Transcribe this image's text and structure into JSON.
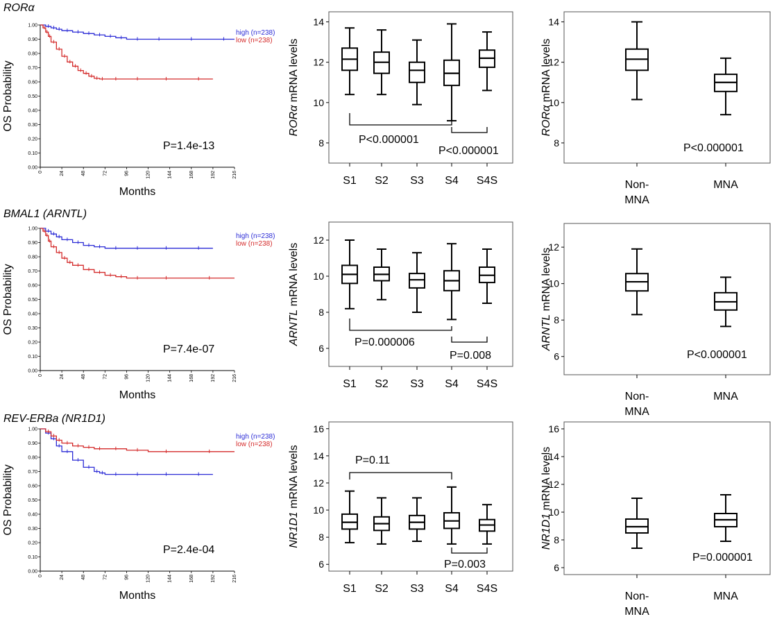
{
  "survival": {
    "y_ticks": [
      "1.00",
      "0.90",
      "0.80",
      "0.70",
      "0.60",
      "0.50",
      "0.40",
      "0.30",
      "0.20",
      "0.10",
      "0.00"
    ],
    "x_ticks": [
      "0",
      "24",
      "48",
      "72",
      "96",
      "120",
      "144",
      "168",
      "192",
      "216"
    ],
    "ylabel": "OS Probability",
    "xlabel": "Months",
    "panels": [
      {
        "title": "RORα",
        "high_label": "high (n=238)",
        "low_label": "low (n=238)",
        "p_value": "P=1.4e-13"
      },
      {
        "title": "BMAL1 (ARNTL)",
        "high_label": "high (n=238)",
        "low_label": "low (n=238)",
        "p_value": "P=7.4e-07"
      },
      {
        "title": "REV-ERBa (NR1D1)",
        "high_label": "high (n=238)",
        "low_label": "low (n=238)",
        "p_value": "P=2.4e-04"
      }
    ]
  },
  "stage_box": {
    "categories": [
      "S1",
      "S2",
      "S3",
      "S4",
      "S4S"
    ],
    "panels": [
      {
        "gene": "RORα",
        "ylabel_suffix": " mRNA levels",
        "y_ticks": [
          "14",
          "12",
          "10",
          "8"
        ],
        "p1": "P<0.000001",
        "p2": "P<0.000001"
      },
      {
        "gene": "ARNTL",
        "ylabel_suffix": " mRNA levels",
        "y_ticks": [
          "12",
          "10",
          "8",
          "6"
        ],
        "p1": "P=0.000006",
        "p2": "P=0.008"
      },
      {
        "gene": "NR1D1",
        "ylabel_suffix": " mRNA levels",
        "y_ticks": [
          "16",
          "14",
          "12",
          "10",
          "8",
          "6"
        ],
        "p1": "P=0.11",
        "p2": "P=0.003"
      }
    ]
  },
  "mna_box": {
    "cat1_line1": "Non-",
    "cat1_line2": "MNA",
    "cat2": "MNA",
    "panels": [
      {
        "gene": "RORα",
        "ylabel_suffix": " mRNA levels",
        "y_ticks": [
          "14",
          "12",
          "10",
          "8"
        ],
        "p": "P<0.000001"
      },
      {
        "gene": "ARNTL",
        "ylabel_suffix": " mRNA levels",
        "y_ticks": [
          "12",
          "10",
          "8",
          "6"
        ],
        "p": "P<0.000001"
      },
      {
        "gene": "NR1D1",
        "ylabel_suffix": " mRNA levels",
        "y_ticks": [
          "16",
          "14",
          "12",
          "10",
          "8",
          "6"
        ],
        "p": "P=0.000001"
      }
    ]
  },
  "chart_data": [
    {
      "type": "line",
      "title": "RORα",
      "xlabel": "Months",
      "ylabel": "OS Probability",
      "xlim": [
        0,
        216
      ],
      "ylim": [
        0,
        1
      ],
      "series": [
        {
          "name": "high (n=238)",
          "color": "#2b2bd6",
          "x": [
            0,
            6,
            12,
            18,
            24,
            36,
            48,
            60,
            72,
            84,
            96,
            120,
            144,
            192,
            216
          ],
          "y": [
            1.0,
            0.99,
            0.98,
            0.97,
            0.96,
            0.95,
            0.94,
            0.93,
            0.92,
            0.91,
            0.9,
            0.9,
            0.9,
            0.9,
            0.9
          ]
        },
        {
          "name": "low (n=238)",
          "color": "#d42a2a",
          "x": [
            0,
            3,
            6,
            9,
            12,
            18,
            24,
            30,
            36,
            42,
            48,
            54,
            60,
            66,
            72,
            96,
            120,
            160,
            192
          ],
          "y": [
            1.0,
            0.98,
            0.95,
            0.92,
            0.88,
            0.83,
            0.78,
            0.74,
            0.71,
            0.68,
            0.66,
            0.64,
            0.625,
            0.62,
            0.62,
            0.62,
            0.62,
            0.62,
            0.62
          ]
        }
      ],
      "p_value": "P=1.4e-13"
    },
    {
      "type": "line",
      "title": "BMAL1 (ARNTL)",
      "xlabel": "Months",
      "ylabel": "OS Probability",
      "xlim": [
        0,
        216
      ],
      "ylim": [
        0,
        1
      ],
      "series": [
        {
          "name": "high (n=238)",
          "color": "#2b2bd6",
          "x": [
            0,
            6,
            12,
            18,
            24,
            36,
            48,
            60,
            72,
            96,
            120,
            160,
            192
          ],
          "y": [
            1.0,
            0.98,
            0.96,
            0.94,
            0.92,
            0.9,
            0.88,
            0.87,
            0.86,
            0.86,
            0.86,
            0.86,
            0.86
          ]
        },
        {
          "name": "low (n=238)",
          "color": "#d42a2a",
          "x": [
            0,
            3,
            6,
            9,
            12,
            18,
            24,
            30,
            36,
            48,
            60,
            72,
            84,
            96,
            120,
            160,
            216
          ],
          "y": [
            1.0,
            0.98,
            0.95,
            0.91,
            0.87,
            0.83,
            0.79,
            0.76,
            0.74,
            0.71,
            0.69,
            0.67,
            0.66,
            0.65,
            0.65,
            0.65,
            0.65
          ]
        }
      ],
      "p_value": "P=7.4e-07"
    },
    {
      "type": "line",
      "title": "REV-ERBa (NR1D1)",
      "xlabel": "Months",
      "ylabel": "OS Probability",
      "xlim": [
        0,
        216
      ],
      "ylim": [
        0,
        1
      ],
      "series": [
        {
          "name": "high (n=238)",
          "color": "#2b2bd6",
          "x": [
            0,
            6,
            12,
            18,
            24,
            36,
            48,
            60,
            66,
            72,
            96,
            120,
            160,
            192
          ],
          "y": [
            1.0,
            0.97,
            0.93,
            0.88,
            0.84,
            0.78,
            0.73,
            0.7,
            0.69,
            0.68,
            0.68,
            0.68,
            0.68,
            0.68
          ]
        },
        {
          "name": "low (n=238)",
          "color": "#d42a2a",
          "x": [
            0,
            6,
            12,
            18,
            24,
            36,
            48,
            60,
            72,
            96,
            120,
            160,
            216
          ],
          "y": [
            1.0,
            0.98,
            0.95,
            0.92,
            0.9,
            0.88,
            0.87,
            0.86,
            0.86,
            0.85,
            0.84,
            0.84,
            0.84
          ]
        }
      ],
      "p_value": "P=2.4e-04"
    },
    {
      "type": "box",
      "ylabel": "RORα mRNA levels",
      "categories": [
        "S1",
        "S2",
        "S3",
        "S4",
        "S4S"
      ],
      "ylim": [
        7,
        14.5
      ],
      "boxes": [
        {
          "min": 10.4,
          "q1": 11.6,
          "median": 12.15,
          "q3": 12.7,
          "max": 13.7
        },
        {
          "min": 10.4,
          "q1": 11.45,
          "median": 12.0,
          "q3": 12.5,
          "max": 13.6
        },
        {
          "min": 9.9,
          "q1": 11.0,
          "median": 11.6,
          "q3": 12.0,
          "max": 13.1
        },
        {
          "min": 9.1,
          "q1": 10.85,
          "median": 11.45,
          "q3": 12.1,
          "max": 13.9
        },
        {
          "min": 10.6,
          "q1": 11.75,
          "median": 12.2,
          "q3": 12.6,
          "max": 13.5
        }
      ],
      "comparisons": [
        {
          "from": "S1",
          "to": "S4",
          "label": "P<0.000001"
        },
        {
          "from": "S4",
          "to": "S4S",
          "label": "P<0.000001"
        }
      ]
    },
    {
      "type": "box",
      "ylabel": "ARNTL mRNA levels",
      "categories": [
        "S1",
        "S2",
        "S3",
        "S4",
        "S4S"
      ],
      "ylim": [
        5,
        13
      ],
      "boxes": [
        {
          "min": 8.2,
          "q1": 9.6,
          "median": 10.1,
          "q3": 10.6,
          "max": 12.0
        },
        {
          "min": 8.7,
          "q1": 9.75,
          "median": 10.1,
          "q3": 10.5,
          "max": 11.5
        },
        {
          "min": 8.0,
          "q1": 9.35,
          "median": 9.8,
          "q3": 10.15,
          "max": 11.3
        },
        {
          "min": 7.6,
          "q1": 9.2,
          "median": 9.75,
          "q3": 10.3,
          "max": 11.8
        },
        {
          "min": 8.5,
          "q1": 9.65,
          "median": 10.05,
          "q3": 10.5,
          "max": 11.5
        }
      ],
      "comparisons": [
        {
          "from": "S1",
          "to": "S4",
          "label": "P=0.000006"
        },
        {
          "from": "S4",
          "to": "S4S",
          "label": "P=0.008"
        }
      ]
    },
    {
      "type": "box",
      "ylabel": "NR1D1 mRNA levels",
      "categories": [
        "S1",
        "S2",
        "S3",
        "S4",
        "S4S"
      ],
      "ylim": [
        5.5,
        16.5
      ],
      "boxes": [
        {
          "min": 7.6,
          "q1": 8.6,
          "median": 9.1,
          "q3": 9.7,
          "max": 11.4
        },
        {
          "min": 7.5,
          "q1": 8.5,
          "median": 9.0,
          "q3": 9.5,
          "max": 10.9
        },
        {
          "min": 7.7,
          "q1": 8.6,
          "median": 9.1,
          "q3": 9.6,
          "max": 10.9
        },
        {
          "min": 7.5,
          "q1": 8.65,
          "median": 9.2,
          "q3": 9.8,
          "max": 11.7
        },
        {
          "min": 7.5,
          "q1": 8.45,
          "median": 8.9,
          "q3": 9.3,
          "max": 10.4
        }
      ],
      "comparisons": [
        {
          "from": "S1",
          "to": "S4",
          "label": "P=0.11"
        },
        {
          "from": "S4",
          "to": "S4S",
          "label": "P=0.003"
        }
      ]
    },
    {
      "type": "box",
      "ylabel": "RORα mRNA levels",
      "categories": [
        "Non-MNA",
        "MNA"
      ],
      "ylim": [
        7,
        14.5
      ],
      "boxes": [
        {
          "min": 10.15,
          "q1": 11.6,
          "median": 12.15,
          "q3": 12.65,
          "max": 14.0
        },
        {
          "min": 9.4,
          "q1": 10.55,
          "median": 11.0,
          "q3": 11.4,
          "max": 12.2
        }
      ],
      "p_value": "P<0.000001"
    },
    {
      "type": "box",
      "ylabel": "ARNTL mRNA levels",
      "categories": [
        "Non-MNA",
        "MNA"
      ],
      "ylim": [
        5,
        13.3
      ],
      "boxes": [
        {
          "min": 8.3,
          "q1": 9.6,
          "median": 10.1,
          "q3": 10.55,
          "max": 11.9
        },
        {
          "min": 7.65,
          "q1": 8.55,
          "median": 9.0,
          "q3": 9.5,
          "max": 10.35
        }
      ],
      "p_value": "P<0.000001"
    },
    {
      "type": "box",
      "ylabel": "NR1D1 mRNA levels",
      "categories": [
        "Non-MNA",
        "MNA"
      ],
      "ylim": [
        5.5,
        16.5
      ],
      "boxes": [
        {
          "min": 7.4,
          "q1": 8.5,
          "median": 8.95,
          "q3": 9.5,
          "max": 11.0
        },
        {
          "min": 7.9,
          "q1": 8.95,
          "median": 9.45,
          "q3": 9.9,
          "max": 11.25
        }
      ],
      "p_value": "P=0.000001"
    }
  ]
}
